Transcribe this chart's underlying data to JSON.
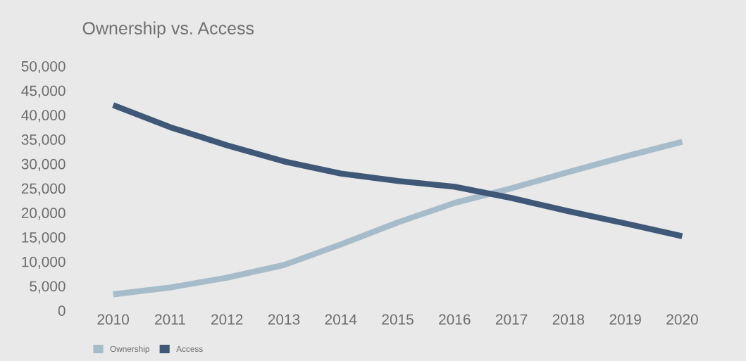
{
  "chart_data": {
    "type": "line",
    "title": "Ownership vs. Access",
    "categories": [
      "2010",
      "2011",
      "2012",
      "2013",
      "2014",
      "2015",
      "2016",
      "2017",
      "2018",
      "2019",
      "2020"
    ],
    "series": [
      {
        "name": "Ownership",
        "color": "#a7bccb",
        "values": [
          3300,
          4700,
          6700,
          9300,
          13500,
          18000,
          22000,
          25000,
          28300,
          31500,
          34500
        ]
      },
      {
        "name": "Access",
        "color": "#3f5878",
        "values": [
          42000,
          37500,
          33800,
          30500,
          28000,
          26500,
          25300,
          23000,
          20300,
          17800,
          15200
        ]
      }
    ],
    "ylim": [
      0,
      50000
    ],
    "yticks": [
      {
        "value": 0,
        "label": "0"
      },
      {
        "value": 5000,
        "label": "5,000"
      },
      {
        "value": 10000,
        "label": "10,000"
      },
      {
        "value": 15000,
        "label": "15,000"
      },
      {
        "value": 20000,
        "label": "20,000"
      },
      {
        "value": 25000,
        "label": "25,000"
      },
      {
        "value": 30000,
        "label": "30,000"
      },
      {
        "value": 35000,
        "label": "35,000"
      },
      {
        "value": 40000,
        "label": "40,000"
      },
      {
        "value": 45000,
        "label": "45,000"
      },
      {
        "value": 50000,
        "label": "50,000"
      }
    ],
    "grid": false,
    "legend": "bottom left",
    "marker": "none",
    "line_style": "solid"
  }
}
